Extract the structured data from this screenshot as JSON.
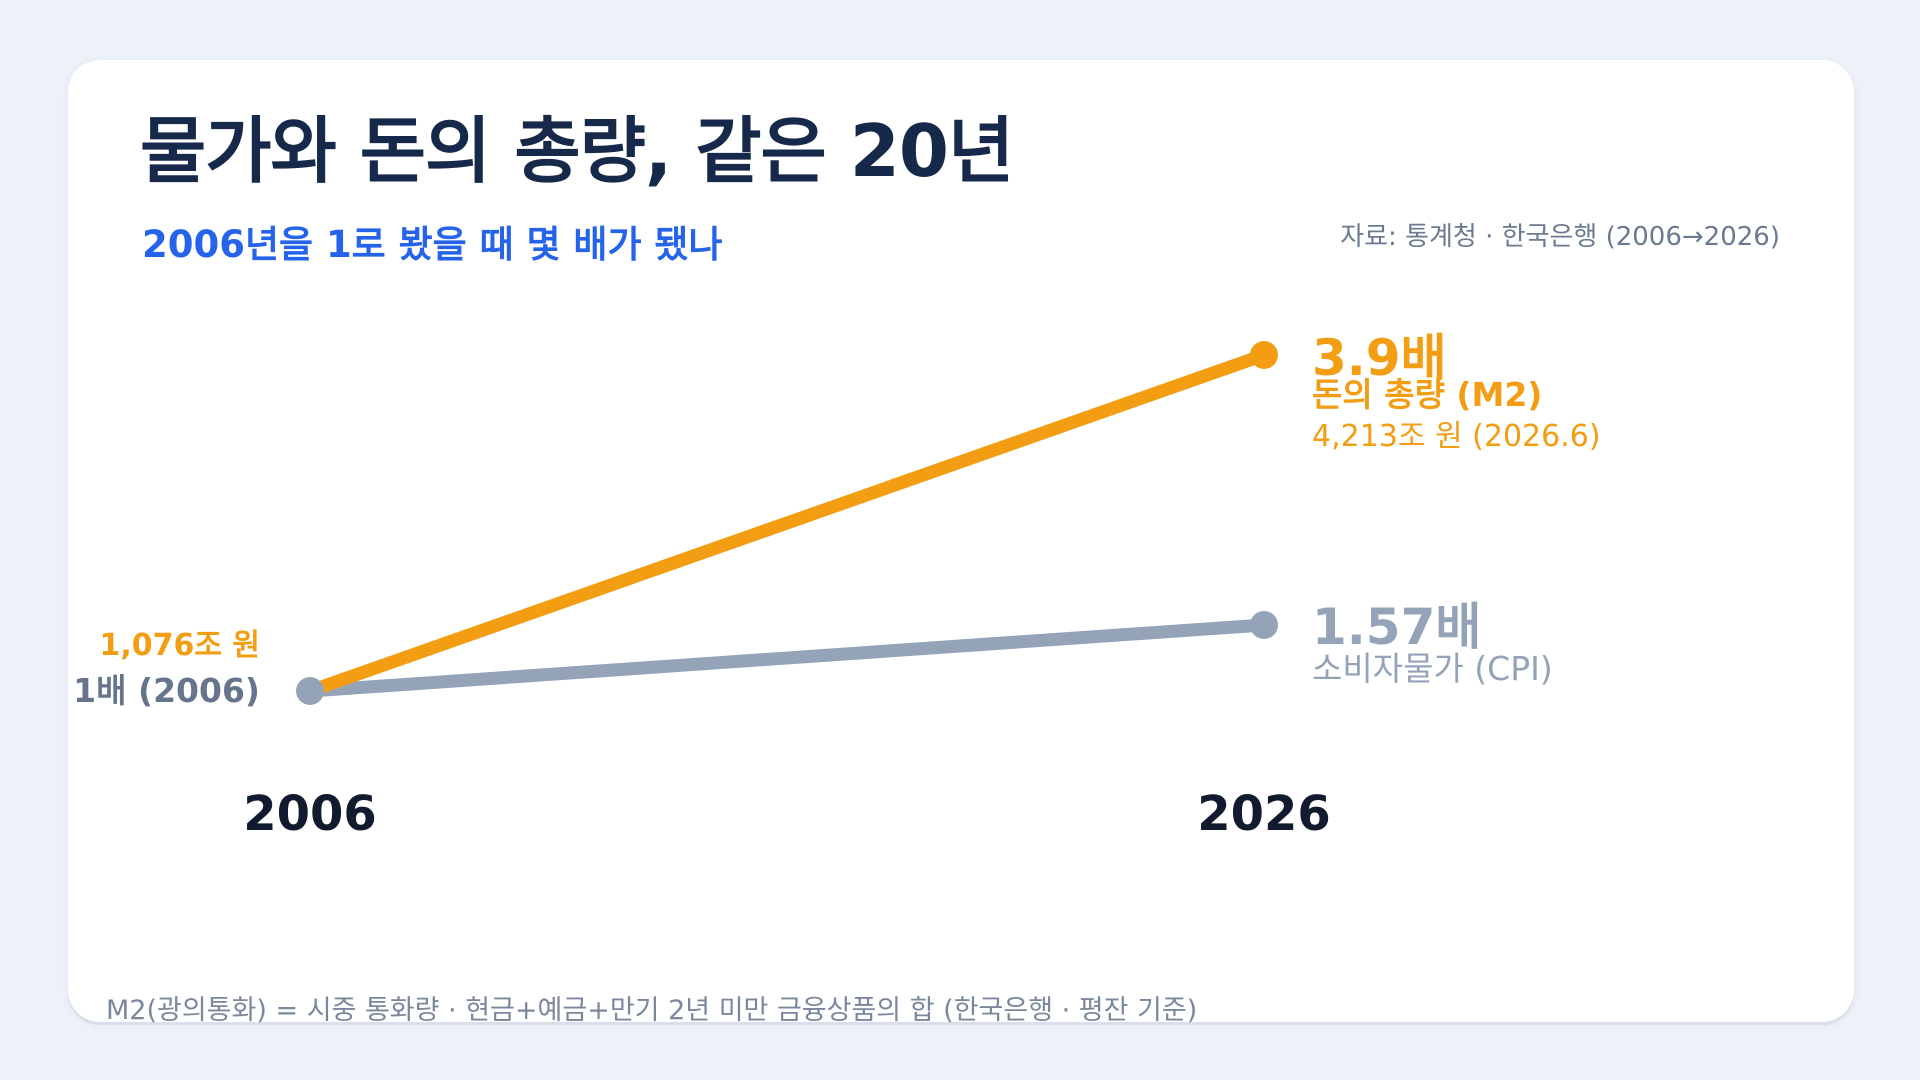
{
  "title": "물가와 돈의 총량, 같은 20년",
  "subtitle": "2006년을 1로 봤을 때 몇 배가 됐나",
  "source": "자료: 통계청 · 한국은행 (2006→2026)",
  "footnote": "M2(광의통화) = 시중 통화량 · 현금+예금+만기 2년 미만 금융상품의 합 (한국은행 · 평잔 기준)",
  "colors": {
    "m2": "#f29d12",
    "cpi": "#94a3b8",
    "title": "#16294a",
    "accent": "#2563eb"
  },
  "chart_data": {
    "type": "line",
    "x": [
      "2006",
      "2026"
    ],
    "ylim": [
      1,
      3.9
    ],
    "grid": false,
    "series": [
      {
        "name": "돈의 총량 (M2)",
        "values": [
          1,
          3.9
        ],
        "color": "#f29d12",
        "end_value_label": "3.9배",
        "end_name_label": "돈의 총량 (M2)",
        "end_detail_label": "4,213조 원 (2026.6)",
        "start_label": "1,076조 원"
      },
      {
        "name": "소비자물가 (CPI)",
        "values": [
          1,
          1.57
        ],
        "color": "#94a3b8",
        "end_value_label": "1.57배",
        "end_name_label": "소비자물가 (CPI)"
      }
    ],
    "start_label": "1배 (2006)"
  }
}
